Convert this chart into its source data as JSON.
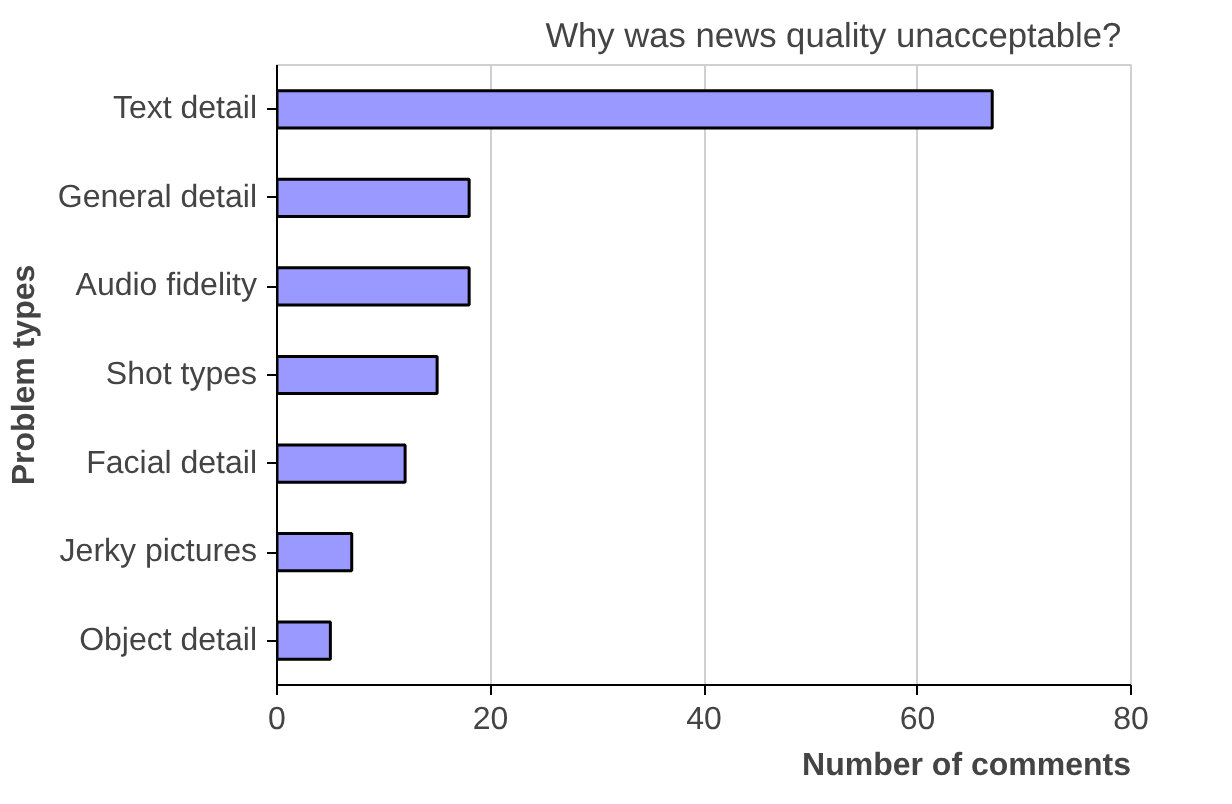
{
  "chart_data": {
    "type": "bar",
    "orientation": "horizontal",
    "title": "Why was  news quality unacceptable?",
    "xlabel": "Number of comments",
    "ylabel": "Problem types",
    "categories": [
      "Text detail",
      "General detail",
      "Audio fidelity",
      "Shot types",
      "Facial detail",
      "Jerky pictures",
      "Object detail"
    ],
    "values": [
      67,
      18,
      18,
      15,
      12,
      7,
      5
    ],
    "color": "#9999ff",
    "xlim": [
      0,
      80
    ],
    "xticks": [
      0,
      20,
      40,
      60,
      80
    ],
    "grid": "x"
  }
}
